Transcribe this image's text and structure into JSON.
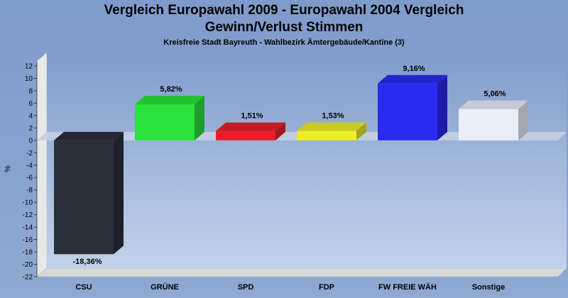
{
  "title": "Vergleich Europawahl 2009 - Europawahl 2004 Vergleich",
  "subtitle": "Gewinn/Verlust Stimmen",
  "region": "Kreisfreie Stadt Bayreuth - Wahlbezirk Ämtergebäude/Kantine (3)",
  "chart_data": {
    "type": "bar",
    "categories": [
      "CSU",
      "GRÜNE",
      "SPD",
      "FDP",
      "FW FREIE WÄH",
      "Sonstige"
    ],
    "values": [
      -18.36,
      5.82,
      1.51,
      1.53,
      9.16,
      5.06
    ],
    "value_labels": [
      "-18,36%",
      "5,82%",
      "1,51%",
      "1,53%",
      "9,16%",
      "5,06%"
    ],
    "colors": [
      "#2b2f3a",
      "#29e33a",
      "#e8202a",
      "#ecec2a",
      "#2a2af0",
      "#e9eef7"
    ],
    "ylabel": "%",
    "ylim": [
      -22,
      12
    ],
    "yticks": [
      12,
      10,
      8,
      6,
      4,
      2,
      0,
      -2,
      -4,
      -6,
      -8,
      -10,
      -12,
      -14,
      -16,
      -18,
      -20,
      -22
    ],
    "grid": false
  }
}
